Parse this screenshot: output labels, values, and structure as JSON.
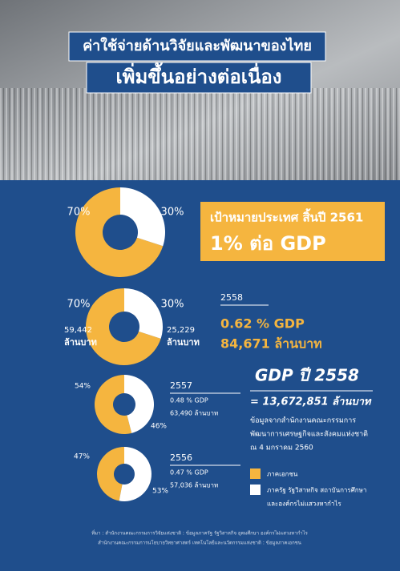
{
  "header": {
    "line1": "ค่าใช้จ่ายด้านวิจัยและพัฒนาของไทย",
    "line2": "เพิ่มขึ้นอย่างต่อเนื่อง"
  },
  "target": {
    "line1": "เป้าหมายประเทศ สิ้นปี 2561",
    "line2": "1% ต่อ GDP"
  },
  "chart_data": [
    {
      "type": "pie",
      "values": [
        70,
        30
      ],
      "colors": [
        "#f5b53f",
        "#ffffff"
      ],
      "value_labels": [
        "70%",
        "30%"
      ]
    },
    {
      "type": "pie",
      "values": [
        70,
        30
      ],
      "colors": [
        "#f5b53f",
        "#ffffff"
      ],
      "value_labels": [
        "70%",
        "30%"
      ],
      "amount_labels": [
        "59,442",
        "25,229"
      ],
      "amount_unit": "ล้านบาท",
      "year": "2558",
      "gdp_share": "0.62 % GDP",
      "amount": "84,671 ล้านบาท"
    },
    {
      "type": "pie",
      "values": [
        54,
        46
      ],
      "colors": [
        "#f5b53f",
        "#ffffff"
      ],
      "value_labels": [
        "54%",
        "46%"
      ],
      "year": "2557",
      "gdp_share": "0.48 % GDP",
      "amount": "63,490 ล้านบาท"
    },
    {
      "type": "pie",
      "values": [
        47,
        53
      ],
      "colors": [
        "#f5b53f",
        "#ffffff"
      ],
      "value_labels": [
        "47%",
        "53%"
      ],
      "year": "2556",
      "gdp_share": "0.47 % GDP",
      "amount": "57,036 ล้านบาท"
    }
  ],
  "gdp": {
    "title": "GDP ปี 2558",
    "value": "= 13,672,851 ล้านบาท",
    "note": [
      "ข้อมูลจากสำนักงานคณะกรรมการ",
      "พัฒนาการเศรษฐกิจและสังคมแห่งชาติ",
      "ณ 4 มกราคม 2560"
    ]
  },
  "legend": [
    {
      "color": "#f5b53f",
      "lines": [
        "ภาคเอกชน"
      ]
    },
    {
      "color": "#ffffff",
      "lines": [
        "ภาครัฐ รัฐวิสาหกิจ สถาบันการศึกษา",
        "และองค์กรไม่แสวงหากำไร"
      ]
    }
  ],
  "source": [
    "ที่มา : สำนักงานคณะกรรมการวิจัยแห่งชาติ : ข้อมูลภาครัฐ รัฐวิสาหกิจ อุดมศึกษา องค์กรไม่แสวงหากำไร",
    "สำนักงานคณะกรรมการนโยบายวิทยาศาสตร์ เทคโนโลยีและนวัตกรรมแห่งชาติ : ข้อมูลภาคเอกชน"
  ]
}
